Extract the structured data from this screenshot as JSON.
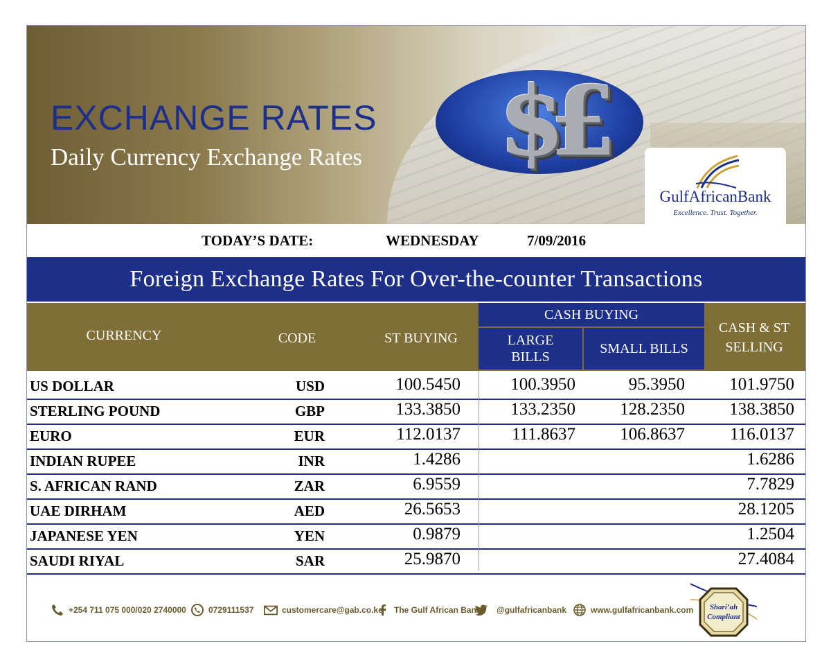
{
  "header": {
    "title": "EXCHANGE RATES",
    "subtitle": "Daily Currency Exchange Rates",
    "art_glyphs": "$£"
  },
  "logo": {
    "name": "GulfAfricanBank",
    "tagline": "Excellence. Trust. Together."
  },
  "date": {
    "label": "TODAY’S DATE:",
    "day": "WEDNESDAY",
    "value": "7/09/2016"
  },
  "band_title": "Foreign Exchange Rates For Over-the-counter Transactions",
  "table": {
    "headers": {
      "currency": "CURRENCY",
      "code": "CODE",
      "st_buying": "ST BUYING",
      "cash_buying": "CASH BUYING",
      "large_bills_1": "LARGE",
      "large_bills_2": "BILLS",
      "small_bills": "SMALL BILLS",
      "selling_1": "CASH & ST",
      "selling_2": "SELLING"
    },
    "rows": [
      {
        "currency": "US DOLLAR",
        "code": "USD",
        "st_buying": "100.5450",
        "large_bills": "100.3950",
        "small_bills": "95.3950",
        "selling": "101.9750"
      },
      {
        "currency": "STERLING POUND",
        "code": "GBP",
        "st_buying": "133.3850",
        "large_bills": "133.2350",
        "small_bills": "128.2350",
        "selling": "138.3850"
      },
      {
        "currency": "EURO",
        "code": "EUR",
        "st_buying": "112.0137",
        "large_bills": "111.8637",
        "small_bills": "106.8637",
        "selling": "116.0137"
      },
      {
        "currency": "INDIAN RUPEE",
        "code": "INR",
        "st_buying": "1.4286",
        "large_bills": "",
        "small_bills": "",
        "selling": "1.6286"
      },
      {
        "currency": "S. AFRICAN RAND",
        "code": "ZAR",
        "st_buying": "6.9559",
        "large_bills": "",
        "small_bills": "",
        "selling": "7.7829"
      },
      {
        "currency": "UAE DIRHAM",
        "code": "AED",
        "st_buying": "26.5653",
        "large_bills": "",
        "small_bills": "",
        "selling": "28.1205"
      },
      {
        "currency": "JAPANESE YEN",
        "code": "YEN",
        "st_buying": "0.9879",
        "large_bills": "",
        "small_bills": "",
        "selling": "1.2504"
      },
      {
        "currency": "SAUDI RIYAL",
        "code": "SAR",
        "st_buying": "25.9870",
        "large_bills": "",
        "small_bills": "",
        "selling": "27.4084"
      }
    ]
  },
  "footer": {
    "phone": "+254 711 075 000/020 2740000",
    "whatsapp": "0729111537",
    "email": "customercare@gab.co.ke",
    "facebook": "The Gulf African Bank",
    "twitter": "@gulfafricanbank",
    "website": "www.gulfafricanbank.com",
    "badge_line1": "Shari’ah",
    "badge_line2": "Compliant"
  },
  "colors": {
    "navy": "#1e2f8a",
    "gold": "#7f6e35",
    "footer_text": "#6b5a2a"
  },
  "icons": [
    "phone-icon",
    "whatsapp-icon",
    "email-icon",
    "facebook-icon",
    "twitter-icon",
    "globe-icon"
  ]
}
